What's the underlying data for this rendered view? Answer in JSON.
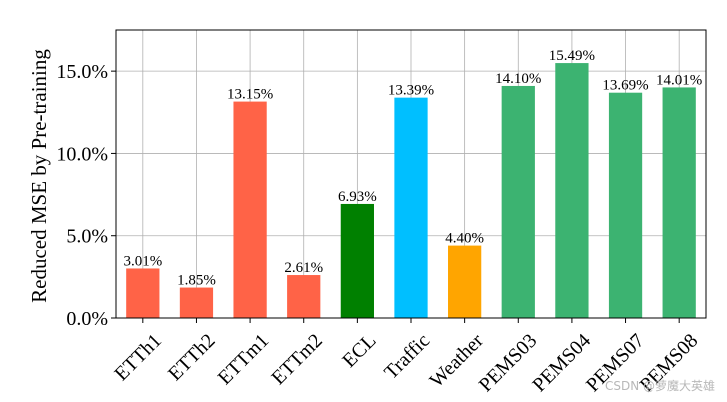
{
  "chart_data": {
    "type": "bar",
    "ylabel": "Reduced MSE by Pre-training",
    "xlabel": "",
    "ylim": [
      0,
      17.5
    ],
    "yticks": [
      0,
      5,
      10,
      15
    ],
    "ytick_labels": [
      "0.0%",
      "5.0%",
      "10.0%",
      "15.0%"
    ],
    "grid": true,
    "categories": [
      "ETTh1",
      "ETTh2",
      "ETTm1",
      "ETTm2",
      "ECL",
      "Traffic",
      "Weather",
      "PEMS03",
      "PEMS04",
      "PEMS07",
      "PEMS08"
    ],
    "values": [
      3.01,
      1.85,
      13.15,
      2.61,
      6.93,
      13.39,
      4.4,
      14.1,
      15.49,
      13.69,
      14.01
    ],
    "value_labels": [
      "3.01%",
      "1.85%",
      "13.15%",
      "2.61%",
      "6.93%",
      "13.39%",
      "4.40%",
      "14.10%",
      "15.49%",
      "13.69%",
      "14.01%"
    ],
    "colors": [
      "#ff6347",
      "#ff6347",
      "#ff6347",
      "#ff6347",
      "#008000",
      "#00bfff",
      "#ffa500",
      "#3cb371",
      "#3cb371",
      "#3cb371",
      "#3cb371"
    ]
  },
  "watermark": "CSDN @萝魔大英雄"
}
